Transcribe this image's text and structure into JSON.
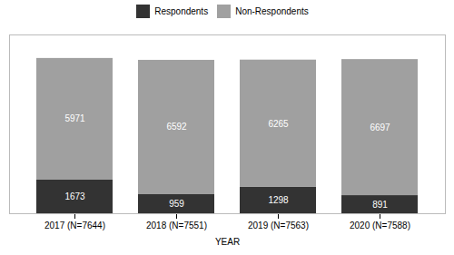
{
  "chart_data": {
    "type": "bar",
    "stacked": true,
    "categories": [
      "2017 (N=7644)",
      "2018 (N=7551)",
      "2019 (N=7563)",
      "2020 (N=7588)"
    ],
    "series": [
      {
        "name": "Respondents",
        "color": "#333333",
        "values": [
          1673,
          959,
          1298,
          891
        ]
      },
      {
        "name": "Non-Respondents",
        "color": "#a0a0a0",
        "values": [
          5971,
          6592,
          6265,
          6697
        ]
      }
    ],
    "xlabel": "YEAR",
    "ylim": [
      0,
      8800
    ],
    "data_labels": true,
    "tick_labels": "x",
    "legend": "top"
  }
}
